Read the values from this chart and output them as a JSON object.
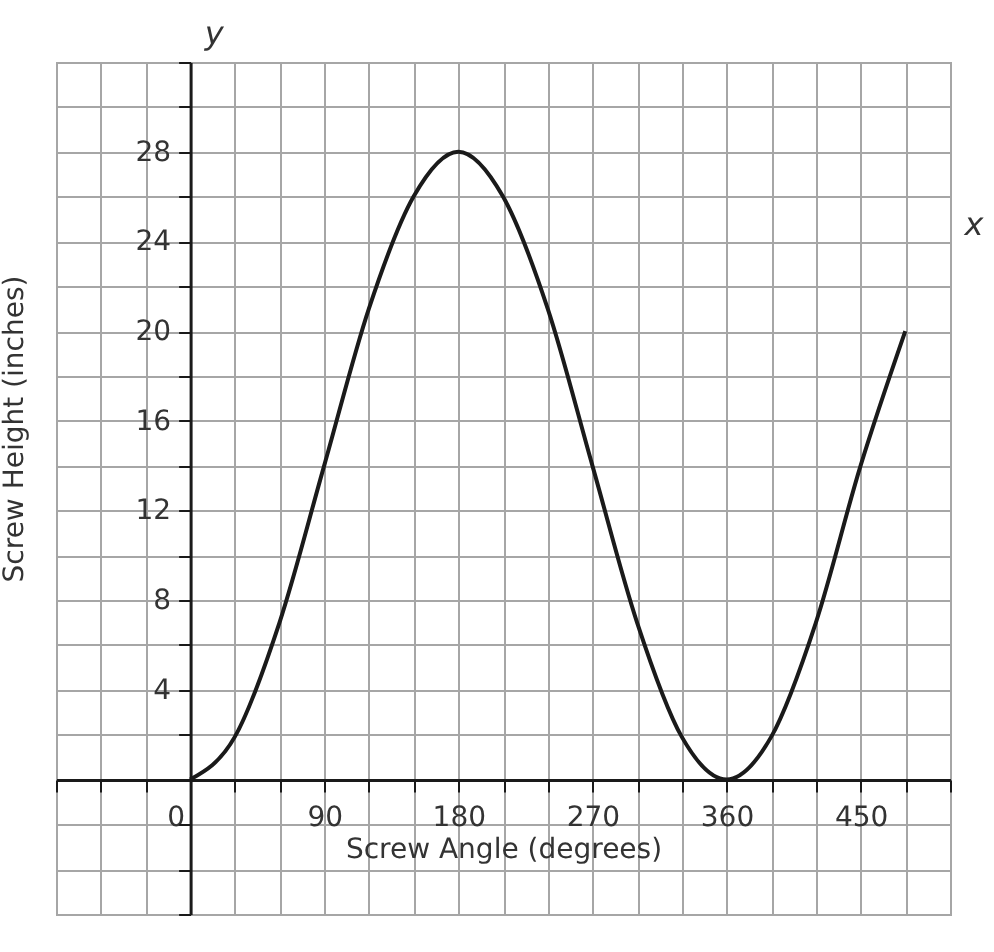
{
  "chart_data": {
    "type": "line",
    "xlabel": "Screw Angle (degrees)",
    "ylabel": "Screw Height (inches)",
    "annotations": [
      "x",
      "y"
    ],
    "x": [
      0,
      30,
      60,
      90,
      120,
      150,
      180,
      210,
      240,
      270,
      300,
      330,
      360,
      390,
      420,
      450,
      480
    ],
    "series": [
      {
        "color": "#1a1a1a",
        "values": [
          0,
          1.9,
          7,
          14,
          21,
          26,
          28,
          26,
          21,
          14,
          7,
          1.9,
          0,
          1.9,
          7,
          14,
          20
        ]
      }
    ],
    "xlim": [
      -90,
      510
    ],
    "ylim": [
      -6,
      32
    ],
    "xticks": [
      {
        "value": -90,
        "label": null
      },
      {
        "value": -60,
        "label": null
      },
      {
        "value": -30,
        "label": null
      },
      0,
      {
        "value": 30,
        "label": null
      },
      {
        "value": 60,
        "label": null
      },
      90,
      {
        "value": 120,
        "label": null
      },
      {
        "value": 150,
        "label": null
      },
      180,
      {
        "value": 210,
        "label": null
      },
      {
        "value": 240,
        "label": null
      },
      270,
      {
        "value": 300,
        "label": null
      },
      {
        "value": 330,
        "label": null
      },
      360,
      {
        "value": 390,
        "label": null
      },
      {
        "value": 420,
        "label": null
      },
      450,
      {
        "value": 480,
        "label": null
      },
      {
        "value": 510,
        "label": null
      }
    ],
    "yticks": [
      {
        "value": -6,
        "label": null
      },
      {
        "value": -4,
        "label": null
      },
      {
        "value": -2,
        "label": null
      },
      {
        "value": 0,
        "label": null
      },
      {
        "value": 2,
        "label": null
      },
      4,
      {
        "value": 6,
        "label": null
      },
      8,
      {
        "value": 10,
        "label": null
      },
      12,
      {
        "value": 14,
        "label": null
      },
      16,
      {
        "value": 18,
        "label": null
      },
      20,
      {
        "value": 22,
        "label": null
      },
      24,
      {
        "value": 26,
        "label": null
      },
      28,
      {
        "value": 30,
        "label": null
      },
      {
        "value": 32,
        "label": null
      }
    ],
    "grid": true,
    "marker": "none",
    "line_style": "solid"
  }
}
